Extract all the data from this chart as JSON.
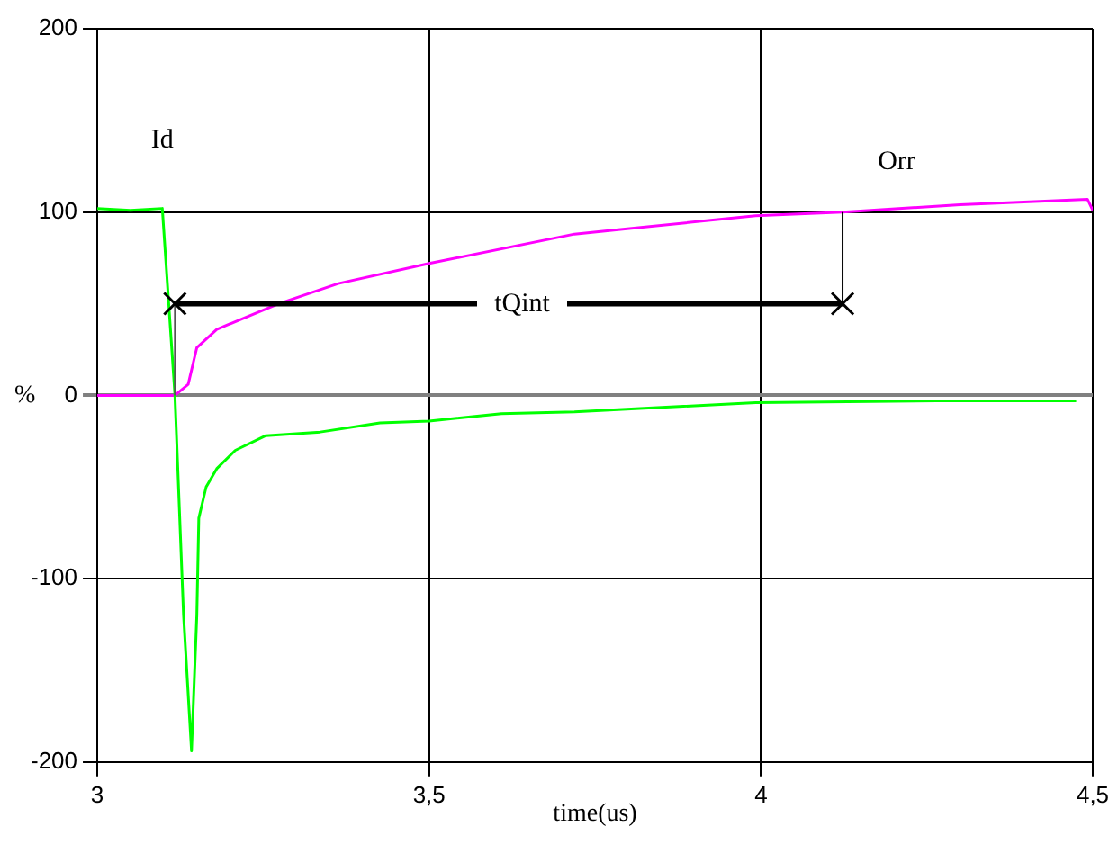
{
  "chart_data": {
    "type": "line",
    "xlabel": "time(us)",
    "ylabel": "%",
    "xlim": [
      3,
      4.5
    ],
    "xticks": [
      3,
      {
        "value": 3.5,
        "label": "3,5"
      },
      4,
      {
        "value": 4.5,
        "label": "4,5"
      }
    ],
    "ylim": [
      -200,
      200
    ],
    "yticks": [
      -200,
      -100,
      0,
      100,
      200
    ],
    "grid": true,
    "legend": false,
    "marker": "none",
    "line_style": "solid",
    "series": [
      {
        "name": "Id",
        "color": "#00ff00",
        "x": [
          3,
          3.05,
          3.098,
          3.117,
          3.13,
          3.142,
          3.15,
          3.153,
          3.164,
          3.18,
          3.208,
          3.254,
          3.336,
          3.426,
          3.5,
          3.609,
          3.719,
          3.992,
          4.265,
          4.475
        ],
        "values": [
          102,
          101,
          102,
          0,
          -120,
          -194,
          -120,
          -67,
          -50,
          -40,
          -30,
          -22,
          -20,
          -15,
          -14,
          -10,
          -9,
          -4,
          -3,
          -3
        ]
      },
      {
        "name": "Orr",
        "color": "#ff00ff",
        "x": [
          3,
          3.117,
          3.137,
          3.15,
          3.18,
          3.273,
          3.363,
          3.5,
          3.719,
          3.992,
          4.123,
          4.3,
          4.492,
          4.5
        ],
        "values": [
          0,
          0,
          6,
          26,
          36,
          50,
          61,
          72,
          88,
          98,
          100,
          104,
          107,
          101
        ]
      }
    ],
    "annotations": [
      {
        "text": "tQint",
        "x": 3.117,
        "y": 50
      }
    ]
  }
}
